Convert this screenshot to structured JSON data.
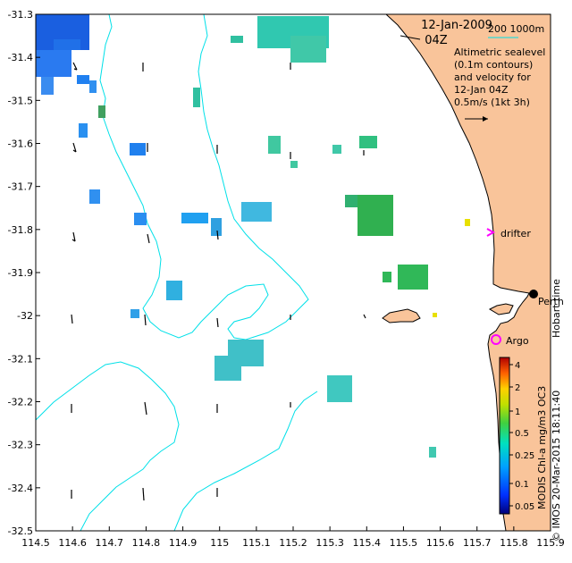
{
  "map": {
    "xticks": [
      "114.5",
      "114.6",
      "114.7",
      "114.8",
      "114.9",
      "115",
      "115.1",
      "115.2",
      "115.3",
      "115.4",
      "115.5",
      "115.6",
      "115.7",
      "115.8",
      "115.9"
    ],
    "yticks": [
      "-31.3",
      "-31.4",
      "-31.5",
      "-31.6",
      "-31.7",
      "-31.8",
      "-31.9",
      "-32",
      "-32.1",
      "-32.2",
      "-32.3",
      "-32.4",
      "-32.5"
    ],
    "date_line1": "12-Jan-2009",
    "date_line2": "04Z",
    "depth_legend": "200  1000m",
    "description_lines": [
      "Altimetric sealevel",
      "(0.1m contours)",
      "and velocity for",
      "12-Jan 04Z",
      "0.5m/s (1kt 3h)"
    ],
    "drifter_label": "drifter",
    "perth_label": "Perth",
    "argo_label": "Argo",
    "hobart_label": "Hobart time",
    "credit": "© IMOS 20-Mar-2015 18:11:40",
    "colorbar_title": "MODIS Chl-a mg/m3 OC3",
    "colorbar_ticks": [
      "4",
      "2",
      "1",
      "0.5",
      "0.25",
      "0.1",
      "0.05"
    ],
    "colors": {
      "land": "#f9c49a",
      "contour": "#00e0e8",
      "drifter": "#ff00ff",
      "argo": "#ff00ff"
    }
  }
}
